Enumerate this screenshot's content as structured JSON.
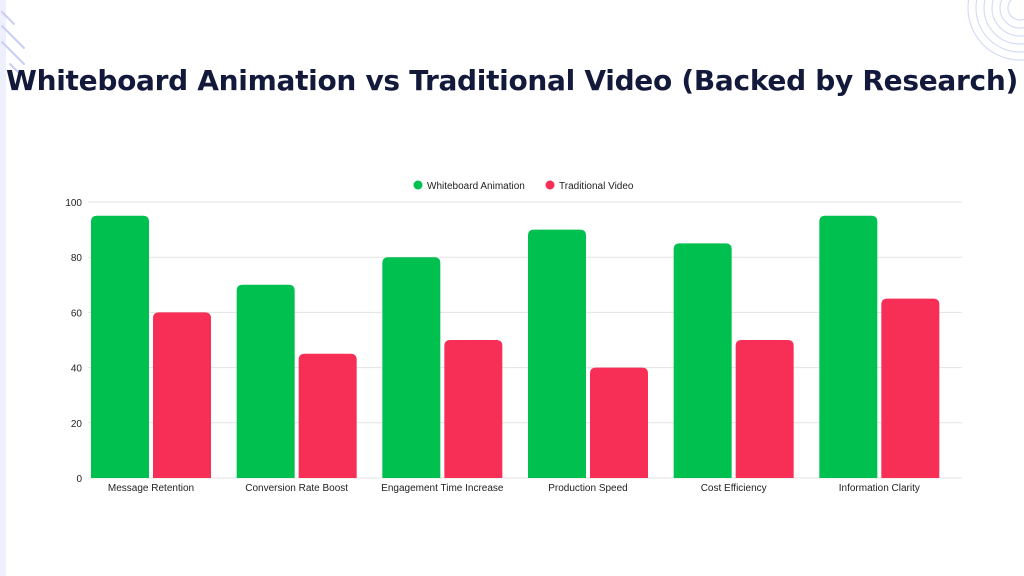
{
  "title": "Whiteboard Animation vs Traditional Video (Backed by Research)",
  "colors": {
    "whiteboard": "#00c04f",
    "traditional": "#f72e56",
    "grid": "#e3e3e3",
    "text": "#222222",
    "title": "#13193a"
  },
  "chart_data": {
    "type": "bar",
    "categories": [
      "Message Retention",
      "Conversion Rate Boost",
      "Engagement Time Increase",
      "Production Speed",
      "Cost Efficiency",
      "Information Clarity"
    ],
    "series": [
      {
        "name": "Whiteboard Animation",
        "color": "#00c04f",
        "values": [
          95,
          70,
          80,
          90,
          85,
          95
        ]
      },
      {
        "name": "Traditional Video",
        "color": "#f72e56",
        "values": [
          60,
          45,
          50,
          40,
          50,
          65
        ]
      }
    ],
    "ylim": [
      0,
      100
    ],
    "yticks": [
      "0",
      "20",
      "40",
      "60",
      "80",
      "100"
    ],
    "xlabel": "",
    "ylabel": "",
    "legend_position": "top-center",
    "grid": true
  }
}
